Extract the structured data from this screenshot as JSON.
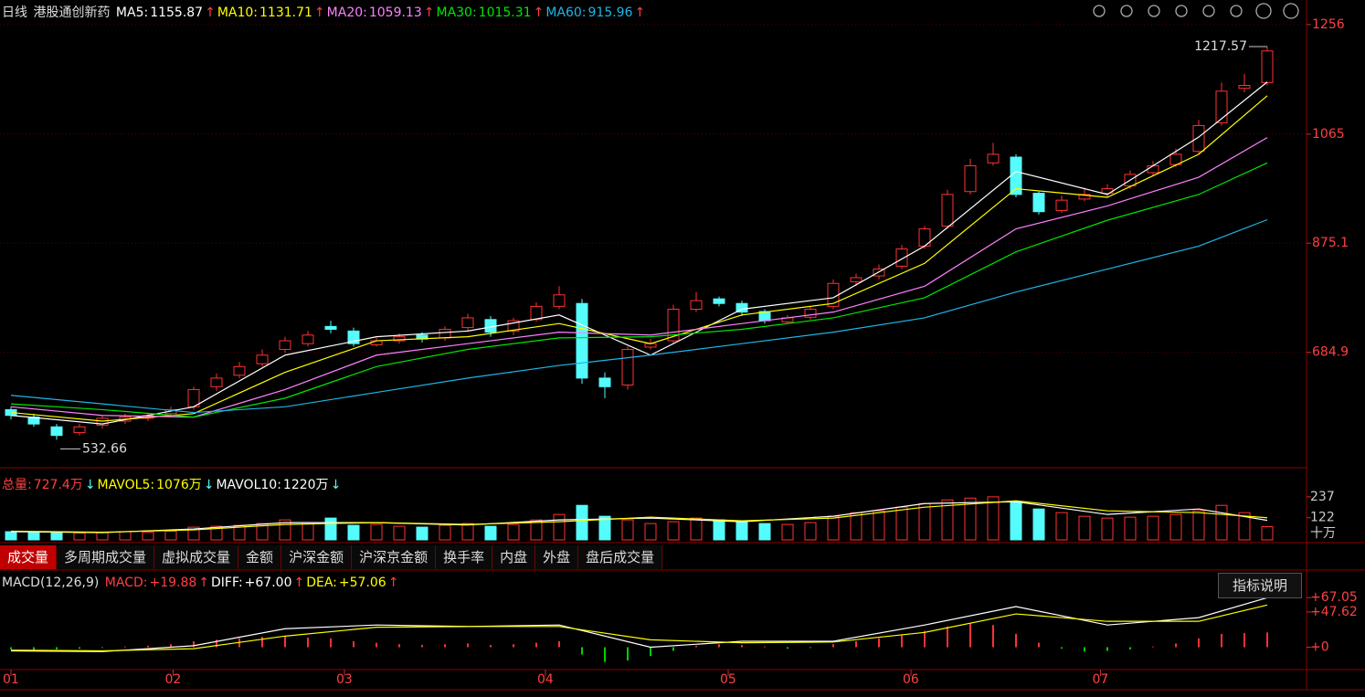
{
  "header": {
    "period": "日线",
    "name": "港股通创新药"
  },
  "chart_data": {
    "type": "candlestick",
    "open": [
      585,
      572,
      555,
      545,
      558,
      565,
      570,
      578,
      590,
      625,
      645,
      665,
      690,
      700,
      730,
      722,
      698,
      705,
      715,
      710,
      728,
      742,
      722,
      742,
      765,
      770,
      640,
      628,
      694,
      705,
      760,
      778,
      770,
      756,
      738,
      746,
      765,
      808,
      818,
      835,
      870,
      905,
      965,
      1015,
      1025,
      962,
      932,
      952,
      962,
      975,
      998,
      1012,
      1035,
      1085,
      1145,
      1155
    ],
    "high": [
      590,
      578,
      560,
      560,
      575,
      578,
      580,
      590,
      625,
      648,
      668,
      690,
      712,
      722,
      740,
      728,
      710,
      718,
      720,
      730,
      752,
      748,
      745,
      772,
      800,
      778,
      650,
      695,
      708,
      768,
      790,
      782,
      775,
      760,
      750,
      765,
      812,
      822,
      838,
      872,
      905,
      968,
      1022,
      1050,
      1030,
      965,
      958,
      972,
      978,
      1002,
      1018,
      1040,
      1090,
      1155,
      1170,
      1217.57
    ],
    "low": [
      568,
      555,
      532.66,
      540,
      552,
      560,
      565,
      572,
      585,
      618,
      640,
      660,
      684,
      695,
      718,
      695,
      695,
      700,
      702,
      705,
      722,
      712,
      715,
      738,
      760,
      630,
      605,
      620,
      690,
      700,
      755,
      765,
      748,
      735,
      735,
      742,
      760,
      800,
      812,
      830,
      865,
      900,
      960,
      1010,
      955,
      925,
      928,
      948,
      955,
      970,
      992,
      1008,
      1030,
      1080,
      1138,
      1150
    ],
    "close": [
      575,
      560,
      540,
      555,
      570,
      572,
      575,
      585,
      620,
      640,
      660,
      680,
      705,
      715,
      725,
      700,
      705,
      712,
      708,
      725,
      745,
      720,
      740,
      765,
      785,
      640,
      625,
      690,
      700,
      760,
      775,
      770,
      755,
      740,
      745,
      760,
      805,
      815,
      830,
      865,
      900,
      960,
      1010,
      1030,
      960,
      930,
      950,
      960,
      970,
      995,
      1010,
      1030,
      1080,
      1140,
      1150,
      1210
    ],
    "up_color": "#ff3232",
    "down_color": "#54fcfc",
    "xlim": [
      -0.48,
      56.72
    ],
    "ylim": [
      487,
      1267
    ],
    "yticks": [
      1256,
      1065,
      875.1,
      684.9
    ],
    "xticks": [
      {
        "value": 0,
        "label": "01"
      },
      {
        "value": 7.1,
        "label": "02"
      },
      {
        "value": 14.6,
        "label": "03"
      },
      {
        "value": 23.4,
        "label": "04"
      },
      {
        "value": 31.4,
        "label": "05"
      },
      {
        "value": 39.4,
        "label": "06"
      },
      {
        "value": 47.7,
        "label": "07"
      }
    ],
    "ma_x": [
      0,
      4,
      8,
      12,
      16,
      20,
      24,
      28,
      32,
      36,
      40,
      44,
      48,
      52,
      55
    ],
    "ma": [
      {
        "name": "MA5:",
        "latest": 1155.87,
        "trend": "↑",
        "color": "#ffffff",
        "values": [
          575,
          560,
          590,
          680,
          712,
          722,
          750,
          680,
          760,
          780,
          870,
          1000,
          960,
          1060,
          1156
        ]
      },
      {
        "name": "MA10:",
        "latest": 1131.71,
        "trend": "↑",
        "color": "#ffff00",
        "values": [
          580,
          565,
          578,
          650,
          705,
          712,
          735,
          700,
          750,
          770,
          840,
          970,
          955,
          1030,
          1132
        ]
      },
      {
        "name": "MA20:",
        "latest": 1059.13,
        "trend": "↑",
        "color": "#ff80ff",
        "values": [
          590,
          575,
          572,
          620,
          680,
          700,
          720,
          715,
          735,
          755,
          800,
          900,
          940,
          990,
          1059
        ]
      },
      {
        "name": "MA30:",
        "latest": 1015.31,
        "trend": "↑",
        "color": "#00e600",
        "values": [
          595,
          585,
          572,
          605,
          660,
          690,
          710,
          712,
          725,
          745,
          780,
          860,
          915,
          960,
          1015
        ]
      },
      {
        "name": "MA60:",
        "latest": 915.96,
        "trend": "↑",
        "color": "#1fb5e5",
        "values": [
          610,
          595,
          580,
          590,
          615,
          640,
          662,
          680,
          700,
          720,
          745,
          790,
          830,
          870,
          916
        ]
      }
    ],
    "volume": {
      "type": "bar",
      "values": [
        45,
        40,
        42,
        38,
        40,
        45,
        42,
        48,
        70,
        75,
        80,
        90,
        110,
        95,
        120,
        80,
        85,
        75,
        70,
        80,
        90,
        75,
        85,
        110,
        140,
        190,
        130,
        110,
        90,
        100,
        120,
        110,
        100,
        90,
        85,
        95,
        130,
        150,
        160,
        180,
        200,
        220,
        230,
        237,
        210,
        170,
        150,
        130,
        120,
        125,
        130,
        140,
        160,
        190,
        150,
        72.7
      ],
      "ylim": [
        0,
        357
      ],
      "yticks": [
        237,
        122
      ],
      "unit": "十万",
      "summary": [
        {
          "name": "总量:",
          "label": "727.4万",
          "trend": "↓",
          "color": "#ff4040"
        },
        {
          "name": "MAVOL5:",
          "label": "1076万",
          "trend": "↓",
          "color": "#ffff00"
        },
        {
          "name": "MAVOL10:",
          "label": "1220万",
          "trend": "↓",
          "color": "#ffffff"
        }
      ],
      "lines": [
        {
          "name": "MAVOL5",
          "color": "#ffffff",
          "values": [
            45,
            40,
            60,
            95,
            95,
            82,
            110,
            120,
            100,
            130,
            200,
            210,
            140,
            170,
            107.6
          ]
        },
        {
          "name": "MAVOL10",
          "color": "#ffff00",
          "values": [
            48,
            42,
            55,
            85,
            95,
            85,
            100,
            125,
            105,
            120,
            180,
            215,
            160,
            150,
            122
          ]
        }
      ]
    },
    "macd": {
      "type": "bar",
      "title": "MACD(12,26,9)",
      "values": [
        -3,
        -4,
        -3,
        -2,
        -1,
        1,
        2,
        4,
        8,
        10,
        12,
        14,
        15,
        13,
        12,
        8,
        6,
        4,
        3,
        4,
        5,
        3,
        4,
        6,
        8,
        -10,
        -20,
        -18,
        -12,
        -5,
        2,
        4,
        3,
        1,
        -2,
        -1,
        4,
        8,
        12,
        16,
        22,
        28,
        32,
        30,
        18,
        6,
        -2,
        -6,
        -5,
        -3,
        1,
        5,
        12,
        18,
        19,
        19.88
      ],
      "ylim": [
        -26.6,
        97
      ],
      "yticks": [
        {
          "value": 67.05,
          "label": "+67.05"
        },
        {
          "value": 47.62,
          "label": "+47.62"
        },
        {
          "value": 0,
          "label": "+0"
        }
      ],
      "up_color": "#ff3232",
      "down_color": "#00d000",
      "summary": [
        {
          "name": "MACD:",
          "label": "+19.88",
          "trend": "↑",
          "color": "#ff4040"
        },
        {
          "name": "DIFF:",
          "label": "+67.00",
          "trend": "↑",
          "color": "#ffffff"
        },
        {
          "name": "DEA:",
          "label": "+57.06",
          "trend": "↑",
          "color": "#ffff00"
        }
      ],
      "lines": [
        {
          "name": "DIFF",
          "color": "#ffffff",
          "values": [
            -5,
            -6,
            2,
            25,
            30,
            28,
            30,
            0,
            8,
            8,
            30,
            55,
            30,
            40,
            67
          ]
        },
        {
          "name": "DEA",
          "color": "#ffff00",
          "values": [
            -4,
            -5,
            -2,
            15,
            27,
            28,
            28,
            10,
            6,
            7,
            20,
            45,
            35,
            35,
            57.06
          ]
        }
      ]
    }
  },
  "tabs": [
    "成交量",
    "多周期成交量",
    "虚拟成交量",
    "金额",
    "沪深金额",
    "沪深京金额",
    "换手率",
    "内盘",
    "外盘",
    "盘后成交量"
  ],
  "button": "指标说明"
}
